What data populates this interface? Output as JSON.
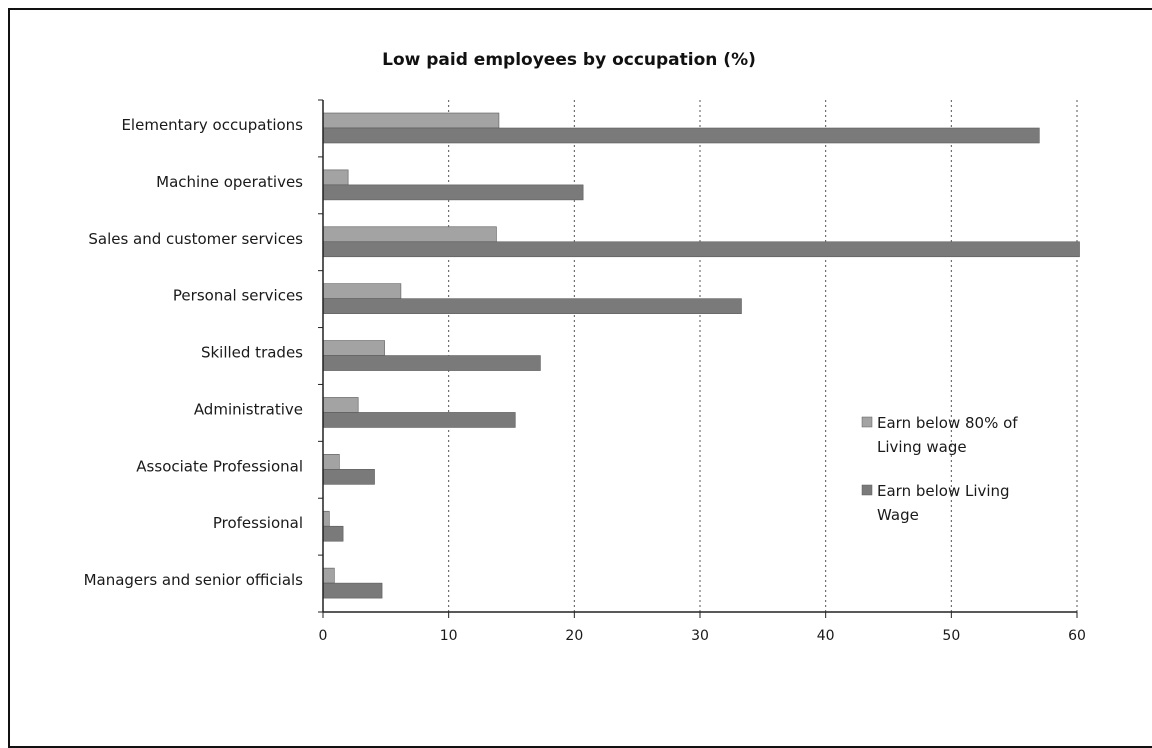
{
  "chart_data": {
    "type": "bar",
    "orientation": "horizontal",
    "title": "Low paid employees by occupation (%)",
    "xlabel": "",
    "ylabel": "",
    "xlim": [
      0,
      60
    ],
    "xticks": [
      0,
      10,
      20,
      30,
      40,
      50,
      60
    ],
    "grid": "vertical dotted",
    "legend_position": "right",
    "categories": [
      "Elementary occupations",
      "Machine operatives",
      "Sales and customer services",
      "Personal services",
      "Skilled trades",
      "Administrative",
      "Associate  Professional",
      "Professional",
      "Managers and senior officials"
    ],
    "series": [
      {
        "name": "Earn below 80% of Living wage",
        "legend_lines": [
          "Earn below 80% of",
          "Living wage"
        ],
        "color": "#a3a3a3",
        "values": [
          14,
          2,
          13.8,
          6.2,
          4.9,
          2.8,
          1.3,
          0.5,
          0.9
        ]
      },
      {
        "name": "Earn below Living Wage",
        "legend_lines": [
          "Earn below Living",
          "Wage"
        ],
        "color": "#7a7a7a",
        "values": [
          57,
          20.7,
          60.2,
          33.3,
          17.3,
          15.3,
          4.1,
          1.6,
          4.7
        ]
      }
    ]
  }
}
